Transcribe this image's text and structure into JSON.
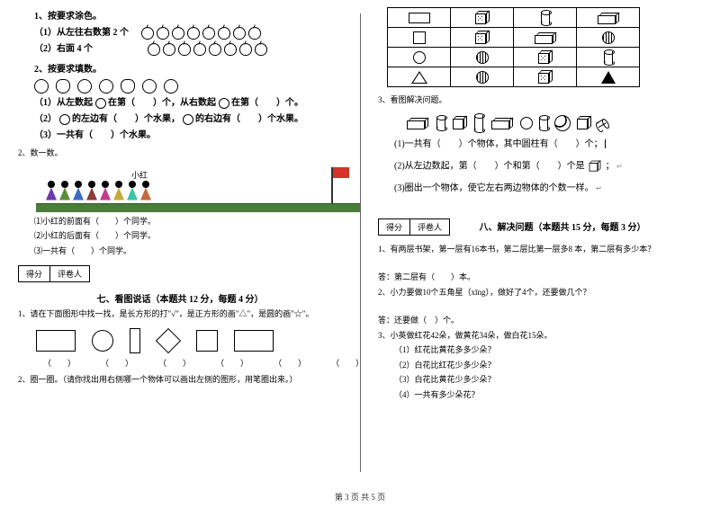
{
  "left": {
    "q1_title": "1、按要求涂色。",
    "q1_1": "（1）从左往右数第 2 个",
    "q1_2": "（2）右面 4 个",
    "q2_title": "2、按要求填数。",
    "q2_1a": "（1）从左数起",
    "q2_1b": "在第（　　）个，从右数起",
    "q2_1c": "在第（　　）个。",
    "q2_2a": "（2）",
    "q2_2b": "的左边有（　　）个水果，",
    "q2_2c": "的右边有（　　）个水果。",
    "q2_3": "（3）一共有（　　）个水果。",
    "count_title": "2、数一数。",
    "xiaohong": "小红",
    "count_1": "⑴小红的前面有（　　）个同学。",
    "count_2": "⑵小红的后面有（　　）个同学。",
    "count_3": "⑶一共有（　　）个同学。",
    "score_l": "得分",
    "score_r": "评卷人",
    "section7": "七、看图说话（本题共 12 分，每题 4 分）",
    "q7_1": "1、请在下面图形中找一找，是长方形的打\"√\"，是正方形的画\"△\"，是圆的画\"☆\"。",
    "blank": "（　　）",
    "q7_2": "2、圈一圈。（请你找出用右侧哪一个物体可以画出左侧的图形，用笔圈出来。）",
    "kid_colors": [
      "#6b3aa8",
      "#5b8c3a",
      "#3a6bc4",
      "#8c3a3a",
      "#c43a8c",
      "#c4a83a",
      "#3ac4a8",
      "#c46b3a"
    ]
  },
  "right": {
    "q3_title": "3、看图解决问题。",
    "q3_1": "(1)一共有（　　）个物体，其中圆柱有（　　）个；",
    "q3_2": "(2)从左边数起，第（　　）个和第（　　）个是",
    "q3_3": "(3)圈出一个物体，使它左右两边物体的个数一样。",
    "score_l": "得分",
    "score_r": "评卷人",
    "section8": "八、解决问题（本题共 15 分，每题 3 分）",
    "q8_1": "1、有两层书架，第一层有16本书，第二层比第一层多8 本，第二层有多少本？",
    "q8_1a": "答：第二层有（　　）本。",
    "q8_2": "2、小力要做10个五角星（xīng），做好了4个，还要做几个？",
    "q8_2a": "答：还要做（　）个。",
    "q8_3": "3、小英做红花42朵，做黄花34朵，做白花15朵。",
    "q8_3_1": "（1）红花比黄花多多少朵？",
    "q8_3_2": "（2）白花比红花少多少朵？",
    "q8_3_3": "（3）白花比黄花少多少朵？",
    "q8_3_4": "（4）一共有多少朵花？",
    "semicolon": "；",
    "period": "。"
  },
  "footer": "第 3 页 共 5 页"
}
